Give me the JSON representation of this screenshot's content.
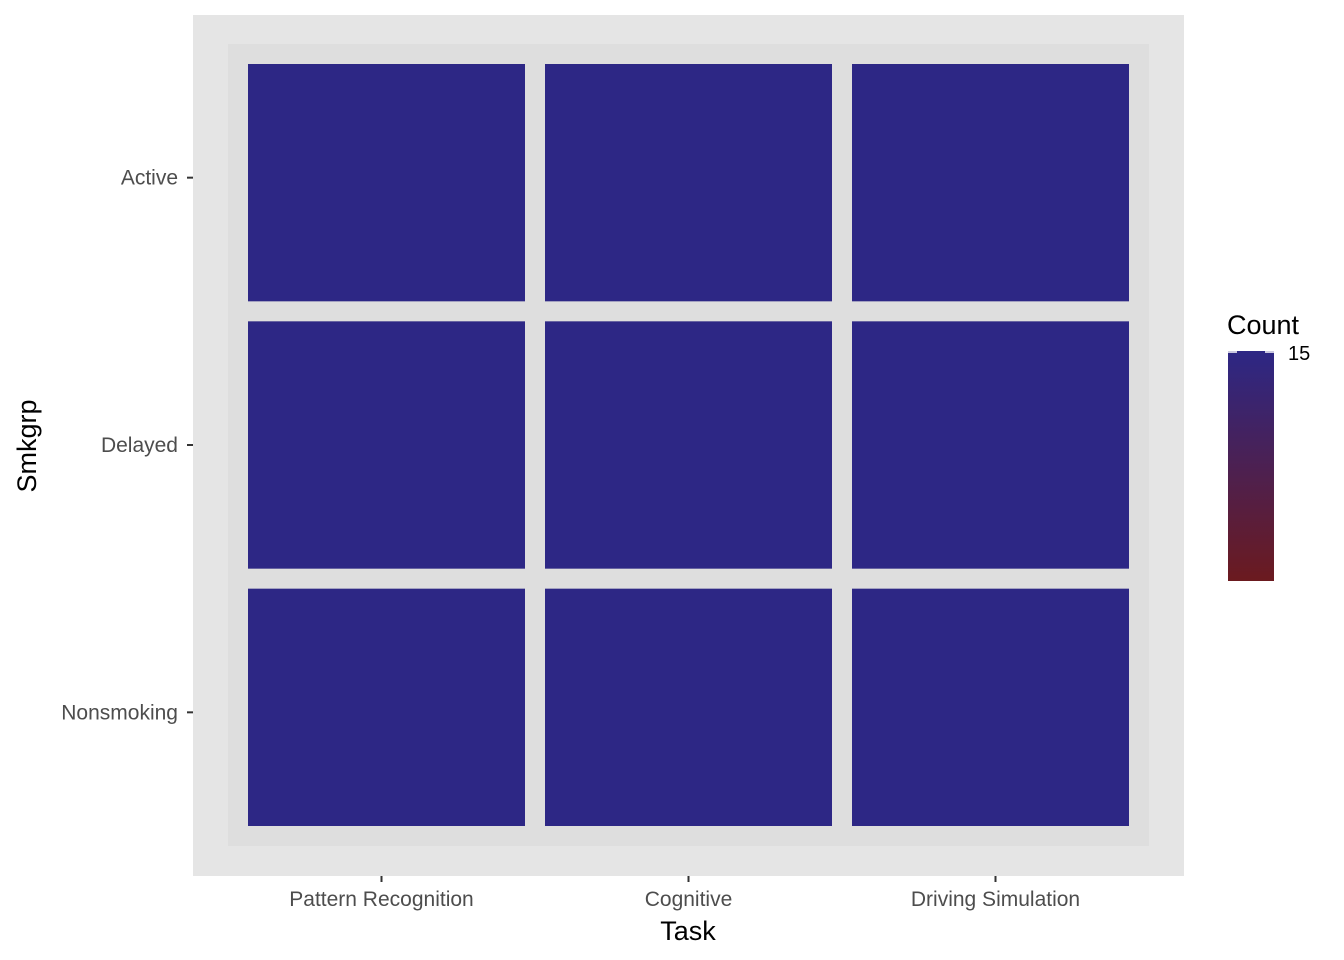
{
  "chart_data": {
    "type": "heatmap",
    "xlabel": "Task",
    "ylabel": "Smkgrp",
    "x_categories": [
      "Pattern Recognition",
      "Cognitive",
      "Driving Simulation"
    ],
    "y_categories": [
      "Active",
      "Delayed",
      "Nonsmoking"
    ],
    "values": [
      [
        15,
        15,
        15
      ],
      [
        15,
        15,
        15
      ],
      [
        15,
        15,
        15
      ]
    ],
    "legend": {
      "title": "Count",
      "position": "right",
      "tick_labels": [
        "15"
      ],
      "color_low": "#6b1a1f",
      "color_high": "#2d2785"
    },
    "grid": true,
    "colors": {
      "panel_background": "#e5e5e5",
      "tile_fill": "#2d2785"
    }
  }
}
